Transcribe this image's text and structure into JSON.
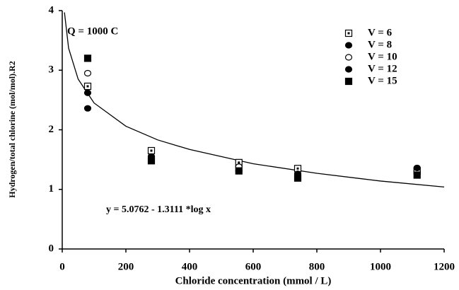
{
  "chart_data": {
    "type": "scatter",
    "title": "Q = 1000 C",
    "x_label": "Chloride concentration (mmol / L)",
    "y_label": "Hydrogen/total chlorine (mol/mol).R2",
    "annotation": "y = 5.0762 - 1.3111 *log x",
    "xlim": [
      0,
      1200
    ],
    "xticks": [
      0,
      200,
      400,
      600,
      800,
      1000,
      1200
    ],
    "ylim": [
      0,
      4
    ],
    "yticks": [
      0,
      1,
      2,
      3,
      4
    ],
    "legend": "top-right",
    "series": [
      {
        "name": "V = 6",
        "marker": "square-dot",
        "color": "#000000",
        "x": [
          80,
          280,
          555,
          740,
          1115
        ],
        "values": [
          2.73,
          1.65,
          1.45,
          1.35,
          1.31
        ]
      },
      {
        "name": "V = 8",
        "marker": "circle",
        "color": "#000000",
        "x": [
          80,
          280,
          555,
          740,
          1115
        ],
        "values": [
          2.36,
          1.55,
          1.38,
          1.26,
          1.36
        ]
      },
      {
        "name": "V = 10",
        "marker": "circle-open",
        "color": "#000000",
        "x": [
          80,
          280,
          555,
          740,
          1115
        ],
        "values": [
          2.95,
          1.55,
          1.38,
          1.26,
          1.31
        ]
      },
      {
        "name": "V = 12",
        "marker": "circle",
        "color": "#000000",
        "x": [
          80,
          280,
          555,
          740,
          1115
        ],
        "values": [
          2.62,
          1.55,
          1.31,
          1.26,
          1.36
        ]
      },
      {
        "name": "V = 15",
        "marker": "square",
        "color": "#000000",
        "x": [
          80,
          280,
          555,
          740,
          1115
        ],
        "values": [
          3.2,
          1.48,
          1.31,
          1.19,
          1.24
        ]
      }
    ],
    "fit": {
      "color": "#000000",
      "x": [
        7,
        20,
        50,
        100,
        200,
        300,
        400,
        600,
        800,
        1000,
        1200
      ],
      "values": [
        3.97,
        3.37,
        2.85,
        2.45,
        2.06,
        1.83,
        1.67,
        1.43,
        1.27,
        1.14,
        1.04
      ]
    }
  }
}
